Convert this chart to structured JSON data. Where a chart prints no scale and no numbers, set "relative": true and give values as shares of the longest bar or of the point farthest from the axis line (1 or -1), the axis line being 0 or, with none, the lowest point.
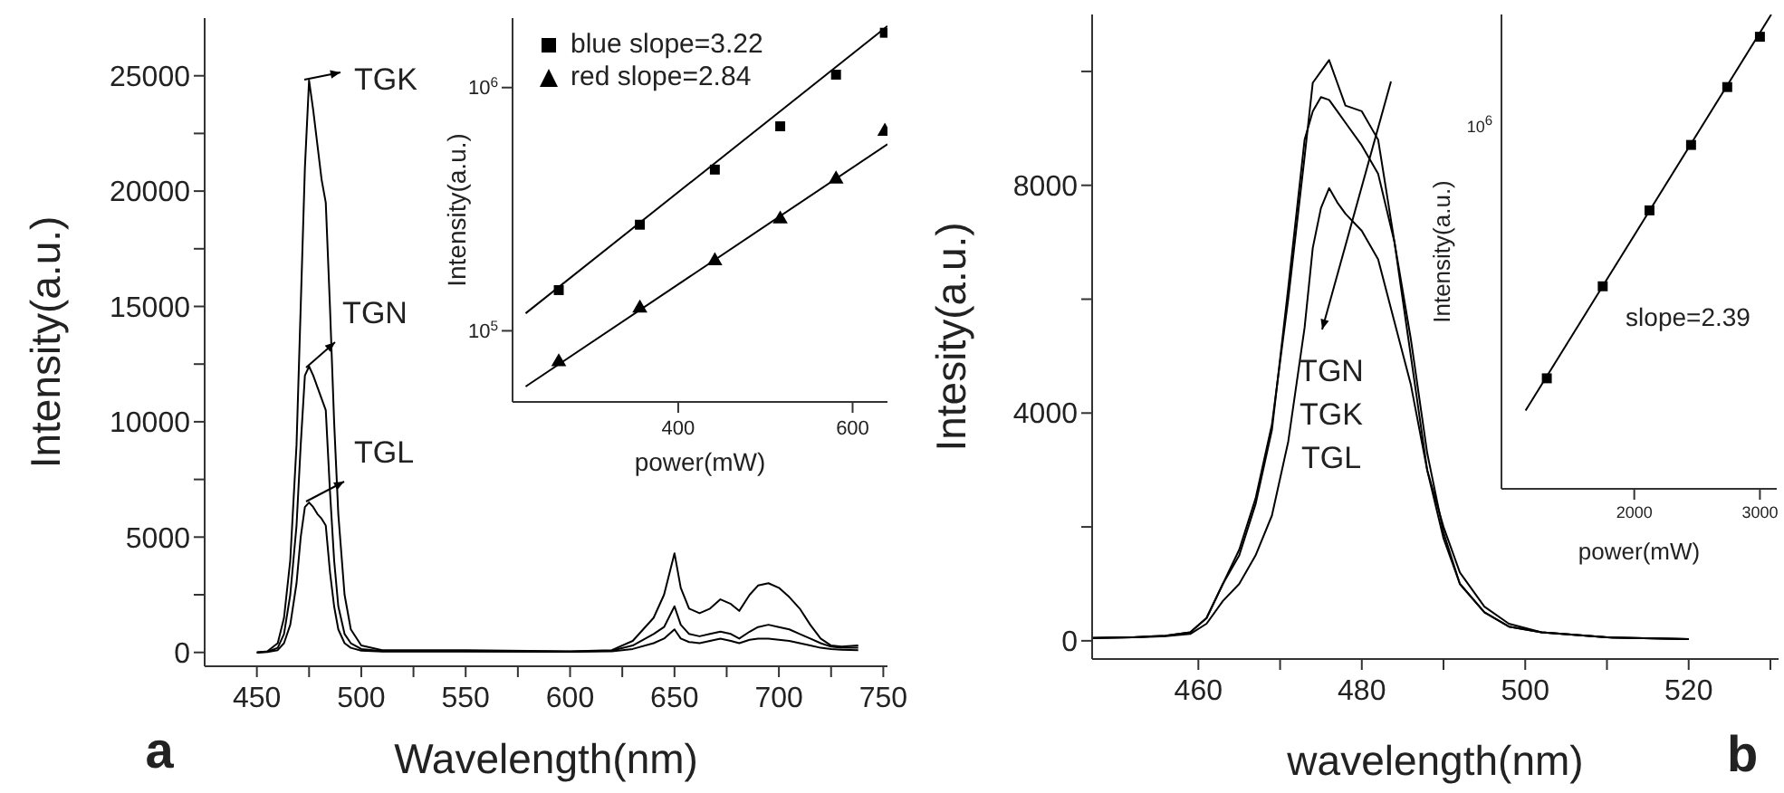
{
  "chart_data": [
    {
      "type": "line",
      "xlabel": "Wavelength(nm)",
      "ylabel": "Intensity(a.u.)",
      "xlim": [
        425,
        752
      ],
      "ylim": [
        -600,
        27500
      ],
      "xticks": [
        450,
        {
          "value": 475,
          "label": null
        },
        500,
        {
          "value": 525,
          "label": null
        },
        550,
        {
          "value": 575,
          "label": null
        },
        600,
        {
          "value": 625,
          "label": null
        },
        650,
        {
          "value": 675,
          "label": null
        },
        700,
        {
          "value": 725,
          "label": null
        },
        750
      ],
      "yticks": [
        0,
        {
          "value": 2500,
          "label": null
        },
        5000,
        {
          "value": 7500,
          "label": null
        },
        10000,
        {
          "value": 12500,
          "label": null
        },
        15000,
        {
          "value": 17500,
          "label": null
        },
        20000,
        {
          "value": 22500,
          "label": null
        },
        25000
      ],
      "x": [
        450,
        455,
        460,
        463,
        466,
        469,
        471,
        473,
        475,
        477,
        479,
        481,
        483,
        485,
        487,
        489,
        492,
        495,
        500,
        510,
        550,
        600,
        620,
        630,
        640,
        645,
        650,
        653,
        657,
        662,
        667,
        672,
        677,
        681,
        686,
        690,
        695,
        700,
        705,
        710,
        715,
        720,
        725,
        730,
        738
      ],
      "series": [
        {
          "color": "#000000",
          "values": [
            0,
            50,
            400,
            1500,
            4000,
            9000,
            15000,
            21000,
            24800,
            23500,
            22000,
            20500,
            19500,
            15000,
            10000,
            6000,
            2500,
            1000,
            300,
            100,
            100,
            50,
            100,
            500,
            1500,
            2500,
            4300,
            2800,
            1900,
            1700,
            1900,
            2300,
            2100,
            1800,
            2500,
            2900,
            3000,
            2800,
            2400,
            1900,
            1200,
            600,
            300,
            250,
            300
          ]
        },
        {
          "color": "#000000",
          "values": [
            0,
            30,
            200,
            800,
            2500,
            5500,
            9000,
            12000,
            12400,
            12000,
            11500,
            11000,
            10500,
            7000,
            4000,
            2000,
            800,
            400,
            150,
            60,
            60,
            40,
            80,
            300,
            800,
            1100,
            2000,
            1200,
            800,
            700,
            800,
            900,
            800,
            600,
            900,
            1100,
            1200,
            1100,
            1000,
            800,
            600,
            400,
            250,
            200,
            200
          ]
        },
        {
          "color": "#000000",
          "values": [
            0,
            20,
            100,
            400,
            1200,
            3000,
            5000,
            6300,
            6500,
            6300,
            6000,
            5800,
            5500,
            3500,
            2000,
            1000,
            400,
            200,
            80,
            40,
            40,
            30,
            50,
            150,
            400,
            600,
            1000,
            600,
            450,
            400,
            500,
            600,
            500,
            400,
            550,
            600,
            600,
            550,
            500,
            400,
            300,
            200,
            150,
            120,
            100
          ]
        }
      ],
      "annotations": [
        "TGK",
        "TGN",
        "TGL",
        "a"
      ]
    },
    {
      "type": "scatter",
      "xlabel": "power(mW)",
      "ylabel": "Intensity(a.u.)",
      "log": "y",
      "xlim": [
        210,
        640
      ],
      "ylim": [
        51000,
        1930000
      ],
      "xticks": [
        400,
        600
      ],
      "yticks": [
        {
          "value": 100000,
          "label": "10$^{5}$"
        },
        {
          "value": 1000000,
          "label": "10$^{6}$"
        }
      ],
      "legend": "top left",
      "series": [
        {
          "name": "blue slope=3.22",
          "color": "#000000",
          "marker": "square",
          "x": [
            263,
            356,
            442,
            517,
            581,
            637
          ],
          "values": [
            147000,
            273000,
            460000,
            693000,
            1130000,
            1680000
          ]
        },
        {
          "name": "red slope=2.84",
          "color": "#000000",
          "marker": "triangle",
          "x": [
            263,
            356,
            442,
            517,
            581,
            637
          ],
          "values": [
            74500,
            124000,
            194000,
            288000,
            420000,
            660000
          ]
        },
        {
          "type": "line",
          "color": "#000000",
          "marker": "none",
          "x": [
            225,
            640
          ],
          "values": [
            118000,
            1790000
          ]
        },
        {
          "type": "line",
          "color": "#000000",
          "marker": "none",
          "x": [
            225,
            640
          ],
          "values": [
            59000,
            585000
          ]
        }
      ]
    },
    {
      "type": "line",
      "xlabel": "wavelength(nm)",
      "ylabel": "Intesity(a.u.)",
      "xlim": [
        447,
        531
      ],
      "ylim": [
        -320,
        11000
      ],
      "xticks": [
        460,
        {
          "value": 470,
          "label": null
        },
        480,
        {
          "value": 490,
          "label": null
        },
        500,
        {
          "value": 510,
          "label": null
        },
        520,
        {
          "value": 530,
          "label": null
        }
      ],
      "yticks": [
        0,
        {
          "value": 2000,
          "label": null
        },
        4000,
        {
          "value": 6000,
          "label": null
        },
        8000,
        {
          "value": 10000,
          "label": null
        }
      ],
      "x": [
        447,
        452,
        456,
        459,
        461,
        463,
        465,
        467,
        469,
        471,
        473,
        474,
        475,
        476,
        477,
        478,
        480,
        482,
        484,
        486,
        488,
        490,
        492,
        495,
        498,
        502,
        510,
        520
      ],
      "series": [
        {
          "color": "#000000",
          "values": [
            50,
            60,
            90,
            150,
            400,
            1000,
            1600,
            2500,
            3800,
            6000,
            8500,
            9800,
            10000,
            10200,
            9800,
            9400,
            9300,
            8800,
            7000,
            5000,
            3000,
            1800,
            1000,
            500,
            250,
            150,
            60,
            30
          ]
        },
        {
          "color": "#000000",
          "values": [
            50,
            60,
            90,
            150,
            400,
            1000,
            1500,
            2400,
            3700,
            6200,
            8800,
            9300,
            9550,
            9500,
            9300,
            9100,
            8700,
            8200,
            7000,
            5300,
            3300,
            1900,
            1000,
            500,
            250,
            150,
            60,
            30
          ]
        },
        {
          "color": "#000000",
          "values": [
            50,
            60,
            80,
            120,
            300,
            700,
            1000,
            1500,
            2200,
            3500,
            5500,
            6900,
            7600,
            7950,
            7700,
            7500,
            7200,
            6700,
            5600,
            4500,
            3000,
            2000,
            1200,
            600,
            300,
            150,
            60,
            30
          ]
        }
      ],
      "annotations": [
        "TGN",
        "TGK",
        "TGL",
        "b"
      ]
    },
    {
      "type": "scatter",
      "xlabel": "power(mW)",
      "ylabel": "Intensity(a.u.)",
      "relative": true,
      "xlim": [
        943,
        3134
      ],
      "xticks": [
        2000,
        3000
      ],
      "series": [
        {
          "color": "#000000",
          "marker": "square",
          "x": [
            1304,
            1749,
            2121,
            2452,
            2740,
            3000
          ],
          "values": [
            0.233,
            0.427,
            0.587,
            0.725,
            0.847,
            0.953
          ]
        },
        {
          "type": "line",
          "color": "#000000",
          "marker": "none",
          "x": [
            1135,
            3090
          ],
          "values": [
            0.165,
            1
          ]
        }
      ],
      "annotations": [
        "slope=2.39",
        "10$^{6}$"
      ]
    }
  ]
}
